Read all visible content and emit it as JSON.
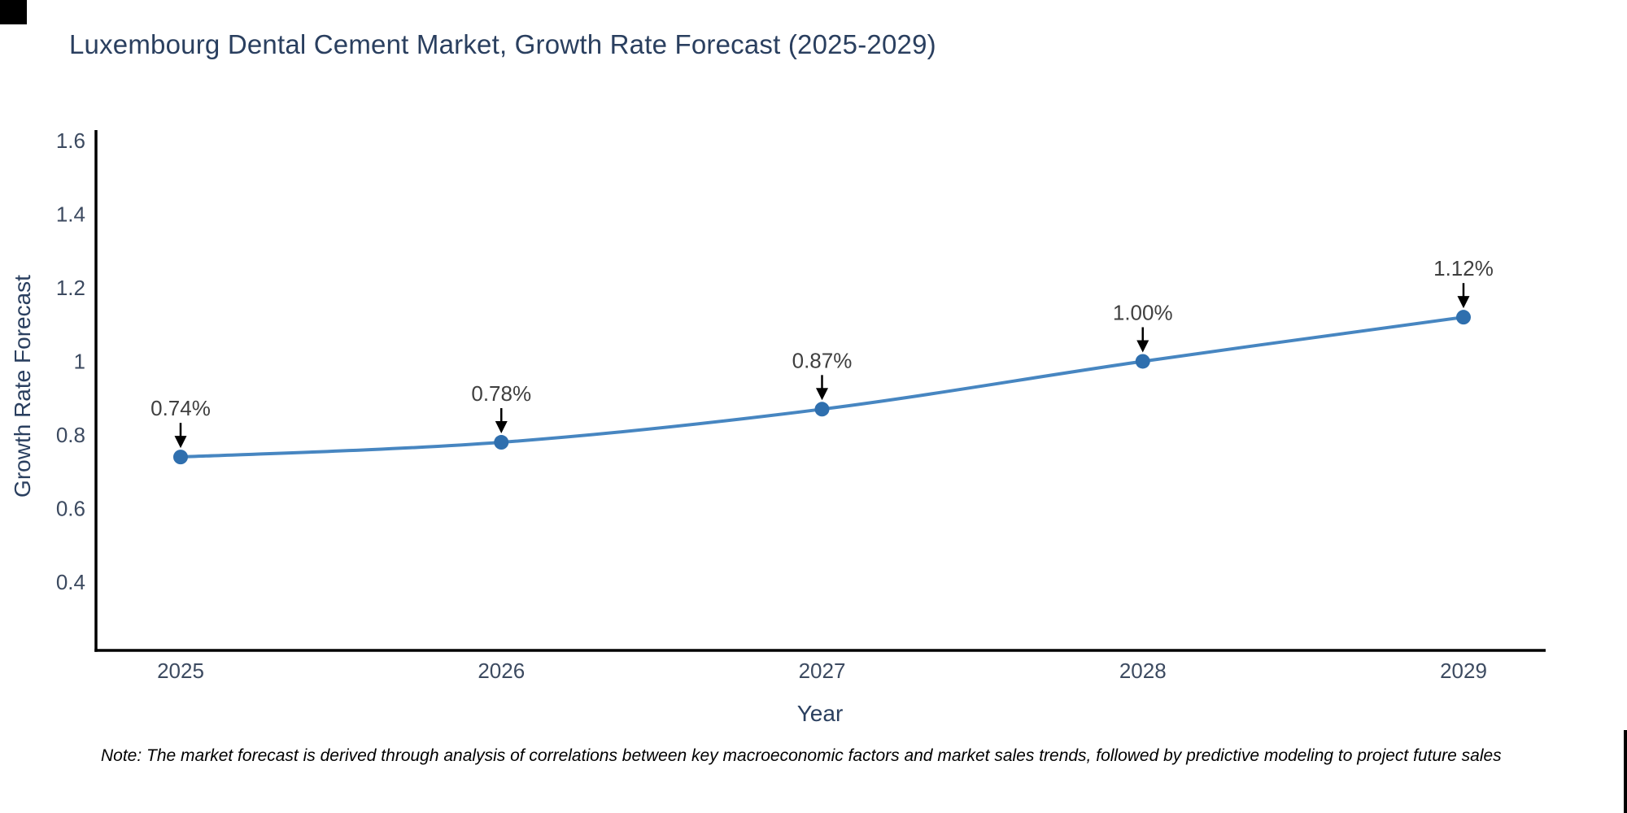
{
  "note": "Note: The market forecast is derived through analysis of correlations between key macroeconomic factors and market sales trends, followed by predictive modeling to project future sales",
  "chart_data": {
    "type": "line",
    "title": "Luxembourg Dental Cement Market, Growth Rate Forecast (2025-2029)",
    "xlabel": "Year",
    "ylabel": "Growth Rate Forecast",
    "x": [
      2025,
      2026,
      2027,
      2028,
      2029
    ],
    "x_tick_labels": [
      "2025",
      "2026",
      "2027",
      "2028",
      "2029"
    ],
    "values": [
      0.74,
      0.78,
      0.87,
      1.0,
      1.12
    ],
    "point_labels": [
      "0.74%",
      "0.78%",
      "0.87%",
      "1.00%",
      "1.12%"
    ],
    "y_ticks": [
      0.4,
      0.6,
      0.8,
      1,
      1.2,
      1.4,
      1.6
    ],
    "y_tick_labels": [
      "0.4",
      "0.6",
      "0.8",
      "1",
      "1.2",
      "1.4",
      "1.6"
    ],
    "xlim": [
      2024.7337,
      2029.2562
    ],
    "ylim": [
      0.2143,
      1.6287
    ],
    "grid": false,
    "legend_position": "none",
    "curve": "spline",
    "title_color": "#2a3f5f",
    "tick_label_color": "#3c4a60",
    "line_color": "#4786c1",
    "marker_color": "#2f6fae",
    "annotation_color": "#3f3f3f",
    "arrow_color": "#000000",
    "axis_color": "#000000"
  }
}
